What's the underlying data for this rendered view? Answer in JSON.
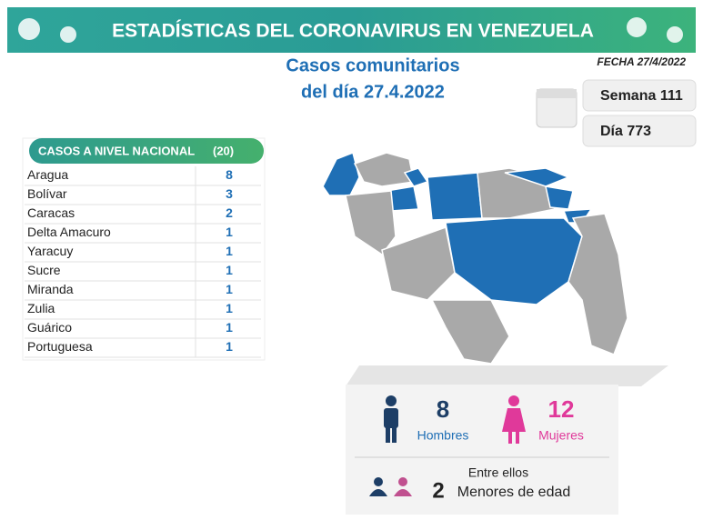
{
  "header": {
    "title": "ESTADÍSTICAS DEL CORONAVIRUS EN VENEZUELA"
  },
  "subtitle": [
    "Casos comunitarios",
    "del día 27.4.2022"
  ],
  "date": "FECHA 27/4/2022",
  "week": "Semana 111",
  "day": "Día 773",
  "table": {
    "title": "CASOS A NIVEL NACIONAL",
    "total": "(20)",
    "rows": [
      [
        "Aragua",
        8
      ],
      [
        "Bolívar",
        3
      ],
      [
        "Caracas",
        2
      ],
      [
        "Delta Amacuro",
        1
      ],
      [
        "Yaracuy",
        1
      ],
      [
        "Sucre",
        1
      ],
      [
        "Miranda",
        1
      ],
      [
        "Zulia",
        1
      ],
      [
        "Guárico",
        1
      ],
      [
        "Portuguesa",
        1
      ]
    ]
  },
  "summary": {
    "men": 8,
    "men_label": "Hombres",
    "women": 12,
    "women_label": "Mujeres",
    "note": "Entre ellos",
    "minors": 2,
    "minors_label": "Menores de edad"
  }
}
